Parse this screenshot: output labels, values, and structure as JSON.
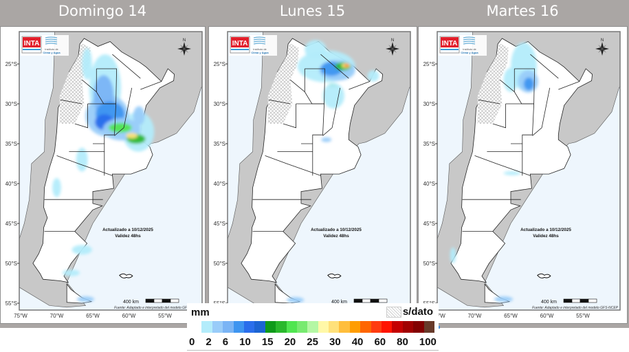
{
  "panels": [
    {
      "title": "Domingo 14",
      "updated": "Actualizado a 10/12/2025",
      "validity": "Validez 48hs",
      "scale": "400 km",
      "source": "Fuente: Adaptado e interpretado del modelo GFS-NCEP"
    },
    {
      "title": "Lunes 15",
      "updated": "Actualizado a 10/12/2025",
      "validity": "Validez 48hs",
      "scale": "400 km",
      "source": "Fuente: Adaptado e interpretado del modelo GFS-NCEP"
    },
    {
      "title": "Martes 16",
      "updated": "Actualizado a 10/12/2025",
      "validity": "Validez 48hs",
      "scale": "400 km",
      "source": "Fuente: Adaptado e interpretado del modelo GFS-NCEP"
    }
  ],
  "logo": {
    "brand": "INTA",
    "institute_line1": "Instituto de",
    "institute_line2": "Clima y Agua"
  },
  "compass": {
    "north": "N"
  },
  "axes": {
    "lat_labels": [
      "25°S",
      "30°S",
      "35°S",
      "40°S",
      "45°S",
      "50°S",
      "55°S"
    ],
    "lon_labels": [
      "75°W",
      "70°W",
      "65°W",
      "60°W",
      "55°W"
    ]
  },
  "legend": {
    "unit": "mm",
    "no_data": "s/dato",
    "ticks": [
      "0",
      "2",
      "6",
      "10",
      "15",
      "20",
      "25",
      "30",
      "40",
      "60",
      "80",
      "100"
    ],
    "colors": [
      "#ffffff",
      "#b3ecfb",
      "#99ccf9",
      "#7ab4f5",
      "#3e95f0",
      "#2a6eeb",
      "#1c64d2",
      "#0f9a1a",
      "#2ab82c",
      "#50e550",
      "#78ea70",
      "#b4f7a4",
      "#fff8a8",
      "#ffe17a",
      "#ffbe3c",
      "#ff9d00",
      "#ff6600",
      "#ff3c10",
      "#ff1400",
      "#c40000",
      "#a00000",
      "#820000",
      "#673a2a"
    ]
  }
}
